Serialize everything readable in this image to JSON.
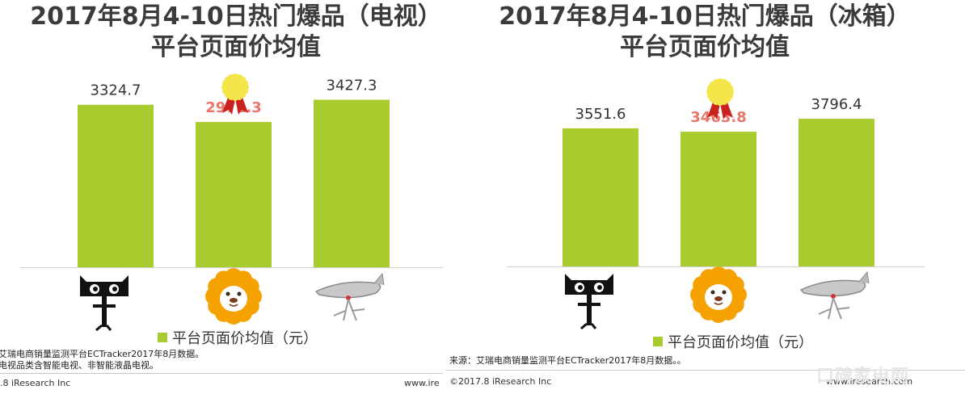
{
  "charts": [
    {
      "title_lines": [
        "2017年8月4-10日热门爆品（电视）",
        "平台页面价均值"
      ],
      "legend": "平台页面价均值（元）",
      "source_lines": [
        "艾瑞电商销量监测平台ECTracker2017年8月数据。",
        "电视品类含智能电视、非智能液晶电视。"
      ],
      "footer_left": ".8 iResearch Inc",
      "footer_right": "www.ire"
    },
    {
      "title_lines": [
        "2017年8月4-10日热门爆品（冰箱）",
        "平台页面价均值"
      ],
      "legend": "平台页面价均值（元）",
      "source_lines": [
        "来源：艾瑞电商销量监测平台ECTracker2017年8月数据。。"
      ],
      "footer_left": "©2017.8 iResearch Inc",
      "footer_right": "www.iresearch.com"
    }
  ],
  "watermark": "口碑家电网",
  "colors": {
    "bar": "#a8cc2e",
    "highlight_label": "#e8766b",
    "label": "#333333",
    "axis": "#d0d0d0"
  },
  "icons": [
    "tmall-cat-icon",
    "suning-lion-icon",
    "jd-dog-icon"
  ],
  "chart_data": [
    {
      "type": "bar",
      "categories": [
        "天猫",
        "苏宁",
        "京东"
      ],
      "values": [
        3324.7,
        2971.3,
        3427.3
      ],
      "labels": [
        "3324.7",
        "2971.3",
        "3427.3"
      ],
      "highlight_index": 1,
      "series": [
        {
          "name": "平台页面价均值（元）",
          "values": [
            3324.7,
            2971.3,
            3427.3
          ]
        }
      ],
      "title": "2017年8月4-10日热门爆品（电视）平台页面价均值",
      "ylim": [
        0,
        3700
      ],
      "grid": false,
      "legend_position": "bottom"
    },
    {
      "type": "bar",
      "categories": [
        "天猫",
        "苏宁",
        "京东"
      ],
      "values": [
        3551.6,
        3463.8,
        3796.4
      ],
      "labels": [
        "3551.6",
        "3463.8",
        "3796.4"
      ],
      "highlight_index": 1,
      "series": [
        {
          "name": "平台页面价均值（元）",
          "values": [
            3551.6,
            3463.8,
            3796.4
          ]
        }
      ],
      "title": "2017年8月4-10日热门爆品（冰箱）平台页面价均值",
      "ylim": [
        0,
        4650
      ],
      "grid": false,
      "legend_position": "bottom"
    }
  ]
}
